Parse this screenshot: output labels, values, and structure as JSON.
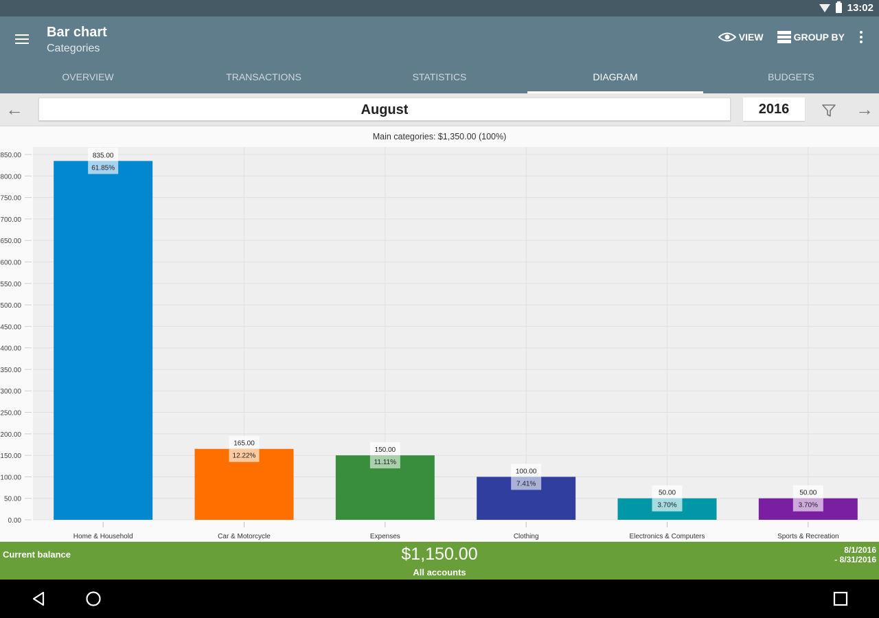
{
  "status_bar": {
    "time": "13:02",
    "icons": [
      "wifi-icon",
      "battery-icon"
    ]
  },
  "appbar": {
    "title": "Bar chart",
    "subtitle": "Categories",
    "actions": [
      {
        "label": "VIEW",
        "icon": "eye-icon"
      },
      {
        "label": "GROUP BY",
        "icon": "group-by-icon"
      }
    ],
    "more_icon": "more-vert-icon"
  },
  "tabs": [
    {
      "label": "OVERVIEW",
      "active": false
    },
    {
      "label": "TRANSACTIONS",
      "active": false
    },
    {
      "label": "STATISTICS",
      "active": false
    },
    {
      "label": "DIAGRAM",
      "active": true
    },
    {
      "label": "BUDGETS",
      "active": false
    }
  ],
  "period": {
    "month": "August",
    "year": "2016",
    "prev_icon": "arrow-left-icon",
    "next_icon": "arrow-right-icon",
    "filter_icon": "filter-icon"
  },
  "chart_data": {
    "type": "bar",
    "title": "Main categories: $1,350.00 (100%)",
    "xlabel": "",
    "ylabel": "",
    "ylim": [
      0,
      850
    ],
    "yticks": [
      "0.00",
      "50.00",
      "100.00",
      "150.00",
      "200.00",
      "250.00",
      "300.00",
      "350.00",
      "400.00",
      "450.00",
      "500.00",
      "550.00",
      "600.00",
      "650.00",
      "700.00",
      "750.00",
      "800.00",
      "850.00"
    ],
    "grid": true,
    "categories": [
      "Home & Household",
      "Car & Motorcycle",
      "Expenses",
      "Clothing",
      "Electronics & Computers",
      "Sports & Recreation"
    ],
    "values": [
      835,
      165,
      150,
      100,
      50,
      50
    ],
    "value_labels": [
      "835.00",
      "165.00",
      "150.00",
      "100.00",
      "50.00",
      "50.00"
    ],
    "percent_labels": [
      "61.85%",
      "12.22%",
      "11.11%",
      "7.41%",
      "3.70%",
      "3.70%"
    ],
    "colors": [
      "#0288d1",
      "#ff6f00",
      "#388e3c",
      "#303f9f",
      "#0097a7",
      "#7b1fa2"
    ],
    "percent_bg": [
      "#a6d3ee",
      "#ffcaa0",
      "#a8d0aa",
      "#aab1d8",
      "#a6dbe1",
      "#ceaadc"
    ]
  },
  "footer": {
    "label": "Current balance",
    "amount": "$1,150.00",
    "sub": "All accounts",
    "date_from": "8/1/2016",
    "date_to": "- 8/31/2016",
    "color": "#689f38"
  },
  "system_nav": {
    "back_icon": "back-icon",
    "home_icon": "home-icon",
    "recents_icon": "recents-icon"
  }
}
